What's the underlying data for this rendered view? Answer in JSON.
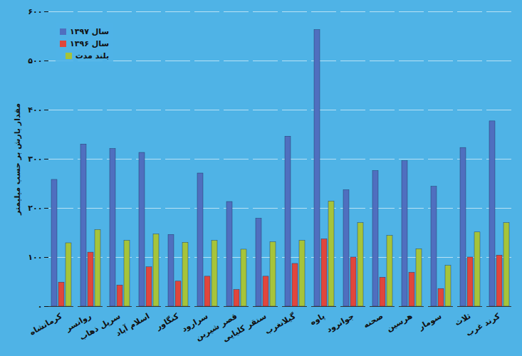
{
  "chart_data": {
    "type": "bar",
    "ylabel": "مقدار بارش بر حسب میلیمتر",
    "categories": [
      "کرمانشاه",
      "روانسر",
      "سرپل ذهاب",
      "اسلام آباد",
      "کنگاور",
      "سرارود",
      "قصر شیرین",
      "سنقر کلیایی",
      "گیلانغرب",
      "پاوه",
      "جوانرود",
      "صحنه",
      "هرسین",
      "سومار",
      "ثلاث",
      "کرند غرب"
    ],
    "series": [
      {
        "name": "سال ۱۳۹۷",
        "color": "#4f6fbf",
        "values": [
          258,
          330,
          321,
          313,
          146,
          271,
          213,
          179,
          346,
          563,
          237,
          276,
          296,
          244,
          323,
          377
        ]
      },
      {
        "name": "سال ۱۳۹۶",
        "color": "#e0463c",
        "values": [
          49,
          110,
          43,
          80,
          51,
          61,
          34,
          61,
          87,
          137,
          100,
          59,
          69,
          36,
          100,
          104
        ]
      },
      {
        "name": "بلند مدت",
        "color": "#a6c43a",
        "values": [
          129,
          156,
          134,
          147,
          130,
          134,
          116,
          131,
          134,
          214,
          170,
          144,
          117,
          83,
          151,
          170
        ]
      }
    ],
    "ylim": [
      0,
      600
    ],
    "yticks": [
      {
        "value": 0,
        "label": "۰"
      },
      {
        "value": 100,
        "label": "۱۰۰"
      },
      {
        "value": 200,
        "label": "۲۰۰"
      },
      {
        "value": 300,
        "label": "۳۰۰"
      },
      {
        "value": 400,
        "label": "۴۰۰"
      },
      {
        "value": 500,
        "label": "۵۰۰"
      },
      {
        "value": 600,
        "label": "۶۰۰"
      }
    ],
    "grid": true,
    "legend": "upper left"
  }
}
